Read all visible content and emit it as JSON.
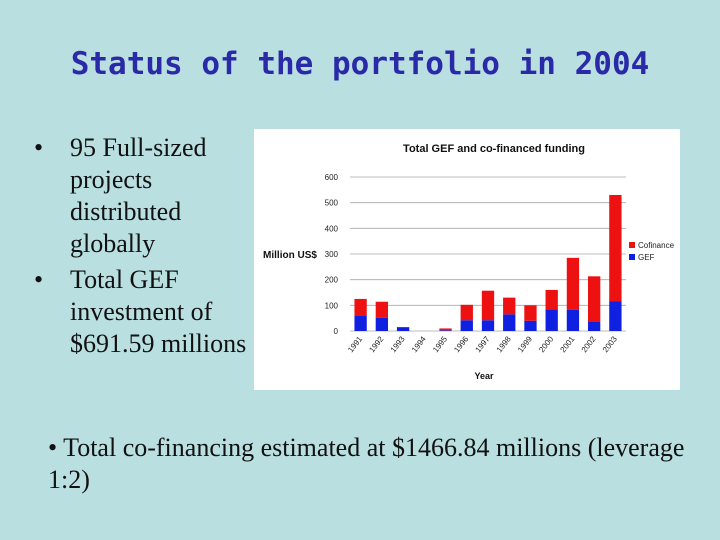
{
  "slide": {
    "title": "Status of the portfolio in 2004",
    "bullets": [
      "95 Full-sized projects distributed globally",
      "Total GEF investment of $691.59 millions"
    ],
    "bullet_glyph": "•",
    "footer_bullet": "Total co-financing estimated at $1466.84 millions (leverage 1:2)"
  },
  "chart_data": {
    "type": "bar",
    "stacked": true,
    "title": "Total GEF and co-financed funding",
    "xlabel": "Year",
    "ylabel": "Million US$",
    "categories": [
      "1991",
      "1992",
      "1993",
      "1994",
      "1995",
      "1996",
      "1997",
      "1998",
      "1999",
      "2000",
      "2001",
      "2002",
      "2003"
    ],
    "series": [
      {
        "name": "GEF",
        "color": "#1020e0",
        "values": [
          60,
          52,
          15,
          0,
          3,
          42,
          42,
          65,
          40,
          85,
          82,
          38,
          115
        ]
      },
      {
        "name": "Cofinance",
        "color": "#ee1111",
        "values": [
          65,
          62,
          0,
          0,
          7,
          60,
          115,
          65,
          60,
          75,
          203,
          175,
          415
        ]
      }
    ],
    "ylim": [
      0,
      600
    ],
    "yticks": [
      0,
      100,
      200,
      300,
      400,
      500,
      600
    ],
    "grid": true,
    "legend": "right"
  }
}
